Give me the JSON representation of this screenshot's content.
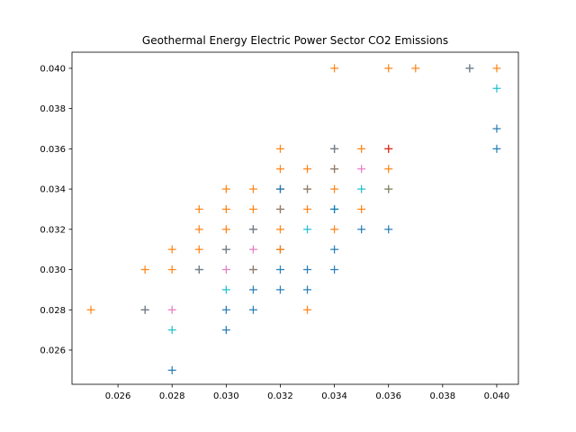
{
  "chart_data": {
    "type": "scatter",
    "title": "Geothermal Energy Electric Power Sector CO2 Emissions",
    "xlabel": "",
    "ylabel": "",
    "xlim": [
      0.0243,
      0.0408
    ],
    "ylim": [
      0.0243,
      0.0408
    ],
    "x_ticks": [
      "0.026",
      "0.028",
      "0.030",
      "0.032",
      "0.034",
      "0.036",
      "0.038",
      "0.040"
    ],
    "y_ticks": [
      "0.026",
      "0.028",
      "0.030",
      "0.032",
      "0.034",
      "0.036",
      "0.038",
      "0.040"
    ],
    "grid": false,
    "marker": "plus",
    "points": [
      {
        "x": 0.025,
        "y": 0.028,
        "color": "#ff7f0e"
      },
      {
        "x": 0.027,
        "y": 0.03,
        "color": "#ff7f0e"
      },
      {
        "x": 0.027,
        "y": 0.028,
        "color": "#1f77b4"
      },
      {
        "x": 0.027,
        "y": 0.028,
        "color": "#7f7f7f"
      },
      {
        "x": 0.028,
        "y": 0.031,
        "color": "#ff7f0e"
      },
      {
        "x": 0.028,
        "y": 0.03,
        "color": "#ff7f0e"
      },
      {
        "x": 0.028,
        "y": 0.028,
        "color": "#e377c2"
      },
      {
        "x": 0.028,
        "y": 0.027,
        "color": "#17becf"
      },
      {
        "x": 0.028,
        "y": 0.025,
        "color": "#1f77b4"
      },
      {
        "x": 0.029,
        "y": 0.033,
        "color": "#ff7f0e"
      },
      {
        "x": 0.029,
        "y": 0.032,
        "color": "#ff7f0e"
      },
      {
        "x": 0.029,
        "y": 0.031,
        "color": "#ff7f0e"
      },
      {
        "x": 0.029,
        "y": 0.03,
        "color": "#1f77b4"
      },
      {
        "x": 0.029,
        "y": 0.03,
        "color": "#7f7f7f"
      },
      {
        "x": 0.03,
        "y": 0.034,
        "color": "#ff7f0e"
      },
      {
        "x": 0.03,
        "y": 0.033,
        "color": "#ff7f0e"
      },
      {
        "x": 0.03,
        "y": 0.032,
        "color": "#ff7f0e"
      },
      {
        "x": 0.03,
        "y": 0.031,
        "color": "#1f77b4"
      },
      {
        "x": 0.03,
        "y": 0.031,
        "color": "#7f7f7f"
      },
      {
        "x": 0.03,
        "y": 0.03,
        "color": "#e377c2"
      },
      {
        "x": 0.03,
        "y": 0.029,
        "color": "#17becf"
      },
      {
        "x": 0.03,
        "y": 0.028,
        "color": "#1f77b4"
      },
      {
        "x": 0.03,
        "y": 0.027,
        "color": "#1f77b4"
      },
      {
        "x": 0.031,
        "y": 0.034,
        "color": "#ff7f0e"
      },
      {
        "x": 0.031,
        "y": 0.033,
        "color": "#ff7f0e"
      },
      {
        "x": 0.031,
        "y": 0.032,
        "color": "#1f77b4"
      },
      {
        "x": 0.031,
        "y": 0.032,
        "color": "#7f7f7f"
      },
      {
        "x": 0.031,
        "y": 0.031,
        "color": "#e377c2"
      },
      {
        "x": 0.031,
        "y": 0.03,
        "color": "#ff7f0e"
      },
      {
        "x": 0.031,
        "y": 0.03,
        "color": "#7f7f7f"
      },
      {
        "x": 0.031,
        "y": 0.029,
        "color": "#1f77b4"
      },
      {
        "x": 0.031,
        "y": 0.028,
        "color": "#1f77b4"
      },
      {
        "x": 0.032,
        "y": 0.036,
        "color": "#ff7f0e"
      },
      {
        "x": 0.032,
        "y": 0.035,
        "color": "#ff7f0e"
      },
      {
        "x": 0.032,
        "y": 0.034,
        "color": "#7f7f7f"
      },
      {
        "x": 0.032,
        "y": 0.034,
        "color": "#1f77b4"
      },
      {
        "x": 0.032,
        "y": 0.033,
        "color": "#ff7f0e"
      },
      {
        "x": 0.032,
        "y": 0.033,
        "color": "#7f7f7f"
      },
      {
        "x": 0.032,
        "y": 0.032,
        "color": "#ff7f0e"
      },
      {
        "x": 0.032,
        "y": 0.031,
        "color": "#7f7f7f"
      },
      {
        "x": 0.032,
        "y": 0.031,
        "color": "#ff7f0e"
      },
      {
        "x": 0.032,
        "y": 0.03,
        "color": "#1f77b4"
      },
      {
        "x": 0.032,
        "y": 0.029,
        "color": "#1f77b4"
      },
      {
        "x": 0.033,
        "y": 0.035,
        "color": "#ff7f0e"
      },
      {
        "x": 0.033,
        "y": 0.034,
        "color": "#ff7f0e"
      },
      {
        "x": 0.033,
        "y": 0.034,
        "color": "#7f7f7f"
      },
      {
        "x": 0.033,
        "y": 0.033,
        "color": "#ff7f0e"
      },
      {
        "x": 0.033,
        "y": 0.032,
        "color": "#17becf"
      },
      {
        "x": 0.033,
        "y": 0.03,
        "color": "#1f77b4"
      },
      {
        "x": 0.033,
        "y": 0.029,
        "color": "#1f77b4"
      },
      {
        "x": 0.033,
        "y": 0.028,
        "color": "#ff7f0e"
      },
      {
        "x": 0.034,
        "y": 0.04,
        "color": "#ff7f0e"
      },
      {
        "x": 0.034,
        "y": 0.036,
        "color": "#1f77b4"
      },
      {
        "x": 0.034,
        "y": 0.036,
        "color": "#7f7f7f"
      },
      {
        "x": 0.034,
        "y": 0.035,
        "color": "#ff7f0e"
      },
      {
        "x": 0.034,
        "y": 0.035,
        "color": "#7f7f7f"
      },
      {
        "x": 0.034,
        "y": 0.034,
        "color": "#ff7f0e"
      },
      {
        "x": 0.034,
        "y": 0.033,
        "color": "#17becf"
      },
      {
        "x": 0.034,
        "y": 0.033,
        "color": "#1f77b4"
      },
      {
        "x": 0.034,
        "y": 0.032,
        "color": "#ff7f0e"
      },
      {
        "x": 0.034,
        "y": 0.031,
        "color": "#1f77b4"
      },
      {
        "x": 0.034,
        "y": 0.03,
        "color": "#1f77b4"
      },
      {
        "x": 0.035,
        "y": 0.036,
        "color": "#ff7f0e"
      },
      {
        "x": 0.035,
        "y": 0.035,
        "color": "#e377c2"
      },
      {
        "x": 0.035,
        "y": 0.034,
        "color": "#17becf"
      },
      {
        "x": 0.035,
        "y": 0.033,
        "color": "#ff7f0e"
      },
      {
        "x": 0.035,
        "y": 0.032,
        "color": "#1f77b4"
      },
      {
        "x": 0.036,
        "y": 0.04,
        "color": "#ff7f0e"
      },
      {
        "x": 0.036,
        "y": 0.036,
        "color": "#ff7f0e"
      },
      {
        "x": 0.036,
        "y": 0.036,
        "color": "#d62728"
      },
      {
        "x": 0.036,
        "y": 0.035,
        "color": "#ff7f0e"
      },
      {
        "x": 0.036,
        "y": 0.034,
        "color": "#bcbd22"
      },
      {
        "x": 0.036,
        "y": 0.034,
        "color": "#7f7f7f"
      },
      {
        "x": 0.036,
        "y": 0.032,
        "color": "#1f77b4"
      },
      {
        "x": 0.037,
        "y": 0.04,
        "color": "#ff7f0e"
      },
      {
        "x": 0.039,
        "y": 0.04,
        "color": "#1f77b4"
      },
      {
        "x": 0.039,
        "y": 0.04,
        "color": "#7f7f7f"
      },
      {
        "x": 0.04,
        "y": 0.04,
        "color": "#ff7f0e"
      },
      {
        "x": 0.04,
        "y": 0.039,
        "color": "#17becf"
      },
      {
        "x": 0.04,
        "y": 0.037,
        "color": "#1f77b4"
      },
      {
        "x": 0.04,
        "y": 0.036,
        "color": "#1f77b4"
      }
    ]
  }
}
